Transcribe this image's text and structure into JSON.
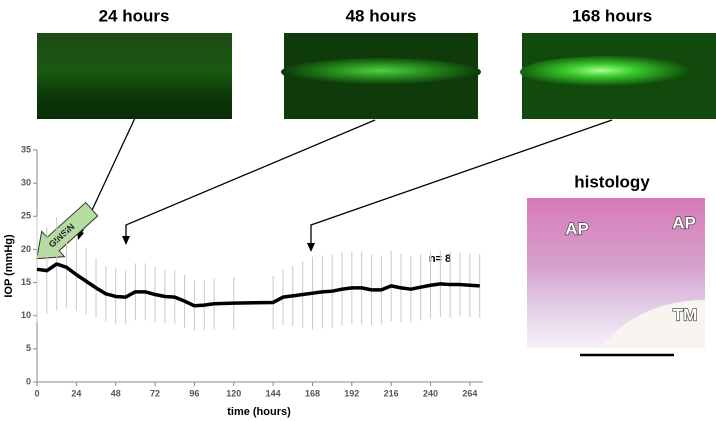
{
  "panels": [
    {
      "label": "24 hours"
    },
    {
      "label": "48 hours"
    },
    {
      "label": "168 hours"
    }
  ],
  "histology": {
    "title": "histology",
    "labels": [
      "AP",
      "AP",
      "TM"
    ]
  },
  "chart_data": {
    "type": "line",
    "y_label": "IOP (mmHg)",
    "x_label": "time (hours)",
    "annotations": [
      "GINSIN",
      "n= 8"
    ],
    "color": "#000000",
    "error_color": "#c8c8c8",
    "x": [
      0,
      6,
      12,
      18,
      24,
      30,
      36,
      42,
      48,
      54,
      60,
      66,
      72,
      78,
      84,
      90,
      96,
      102,
      108,
      120,
      144,
      150,
      156,
      162,
      168,
      174,
      180,
      186,
      192,
      198,
      204,
      210,
      216,
      222,
      228,
      234,
      240,
      246,
      252,
      258,
      264,
      270
    ],
    "values": [
      17,
      16.8,
      17.8,
      17.3,
      16.2,
      15.2,
      14.2,
      13.3,
      12.9,
      12.8,
      13.6,
      13.6,
      13.2,
      12.9,
      12.8,
      12.2,
      11.5,
      11.6,
      11.8,
      11.9,
      12.0,
      12.8,
      13.0,
      13.2,
      13.4,
      13.6,
      13.7,
      14.0,
      14.2,
      14.2,
      13.9,
      13.9,
      14.5,
      14.2,
      14.0,
      14.3,
      14.6,
      14.8,
      14.7,
      14.7,
      14.6,
      14.5
    ],
    "errors": [
      8,
      6.5,
      7,
      6,
      5.5,
      5,
      4.5,
      4.2,
      4.2,
      4,
      4.3,
      4.3,
      4.2,
      4,
      4,
      4,
      3.8,
      3.8,
      3.8,
      3.9,
      4,
      4.2,
      4.5,
      5,
      5.5,
      5.5,
      5.5,
      5.5,
      5.5,
      5.5,
      5.3,
      5.2,
      5.3,
      5.2,
      5,
      5,
      5,
      5,
      5,
      4.8,
      4.8,
      4.8
    ],
    "xlim": [
      0,
      272
    ],
    "xticks": [
      0,
      24,
      48,
      72,
      96,
      120,
      144,
      168,
      192,
      216,
      240,
      264
    ],
    "ylim": [
      0,
      35
    ],
    "yticks": [
      0,
      5,
      10,
      15,
      20,
      25,
      30,
      35
    ]
  }
}
